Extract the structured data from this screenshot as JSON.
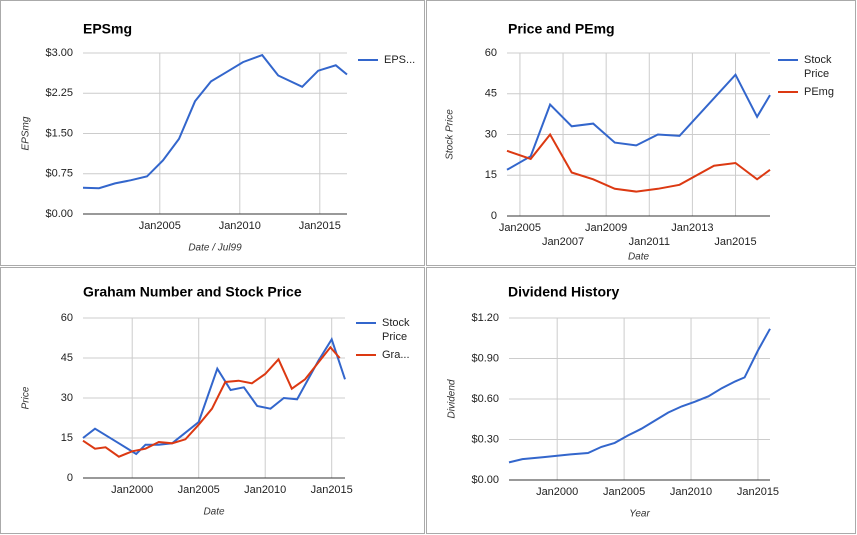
{
  "chart_data": [
    {
      "type": "line",
      "title": "EPSmg",
      "x_label": "Date / Jul99",
      "y_label": "EPSmg",
      "grid": true,
      "xlim": [
        2000.2,
        2016.7
      ],
      "ylim": [
        0,
        3
      ],
      "xticks": [
        {
          "value": 2005,
          "label": "Jan2005"
        },
        {
          "value": 2010,
          "label": "Jan2010"
        },
        {
          "value": 2015,
          "label": "Jan2015"
        }
      ],
      "yticks": [
        {
          "value": 0,
          "label": "$0.00"
        },
        {
          "value": 0.75,
          "label": "$0.75"
        },
        {
          "value": 1.5,
          "label": "$1.50"
        },
        {
          "value": 2.25,
          "label": "$2.25"
        },
        {
          "value": 3,
          "label": "$3.00"
        }
      ],
      "series": [
        {
          "name": "EPS...",
          "color": "#3366cc",
          "x": [
            2000.2,
            2001.2,
            2002.2,
            2003.2,
            2004.2,
            2005.2,
            2006.2,
            2007.2,
            2008.2,
            2009.2,
            2010.2,
            2011.4,
            2012.4,
            2013.9,
            2014.9,
            2016.0,
            2016.7
          ],
          "values": [
            0.49,
            0.48,
            0.57,
            0.63,
            0.7,
            1.0,
            1.4,
            2.1,
            2.47,
            2.65,
            2.83,
            2.96,
            2.58,
            2.37,
            2.67,
            2.77,
            2.6
          ]
        }
      ]
    },
    {
      "type": "line",
      "title": "Price and PEmg",
      "x_label": "Date",
      "y_label": "Stock Price",
      "grid": true,
      "xlim": [
        2004.4,
        2016.6
      ],
      "ylim": [
        0,
        60
      ],
      "xticks": [
        {
          "value": 2005,
          "label": "Jan2005"
        },
        {
          "value": 2007,
          "label": "Jan2007"
        },
        {
          "value": 2009,
          "label": "Jan2009"
        },
        {
          "value": 2011,
          "label": "Jan2011"
        },
        {
          "value": 2013,
          "label": "Jan2013"
        },
        {
          "value": 2015,
          "label": "Jan2015"
        }
      ],
      "yticks": [
        0,
        15,
        30,
        45,
        60
      ],
      "series": [
        {
          "name": "Stock Price",
          "color": "#3366cc",
          "x": [
            2004.4,
            2005.5,
            2006.4,
            2007.4,
            2008.4,
            2009.4,
            2010.4,
            2011.4,
            2012.4,
            2015.0,
            2016.0,
            2016.6
          ],
          "values": [
            17,
            22,
            41,
            33,
            34,
            27,
            26,
            30,
            29.5,
            52,
            36.5,
            44.5
          ]
        },
        {
          "name": "PEmg",
          "color": "#dc3912",
          "x": [
            2004.4,
            2005.5,
            2006.4,
            2007.4,
            2008.4,
            2009.4,
            2010.4,
            2011.4,
            2012.4,
            2014.0,
            2015.0,
            2016.0,
            2016.6
          ],
          "values": [
            24,
            21,
            30,
            16,
            13.5,
            10,
            9,
            10,
            11.5,
            18.5,
            19.5,
            13.5,
            17
          ]
        }
      ]
    },
    {
      "type": "line",
      "title": "Graham Number and Stock Price",
      "x_label": "Date",
      "y_label": "Price",
      "grid": true,
      "xlim": [
        1996.3,
        2016.0
      ],
      "ylim": [
        0,
        60
      ],
      "xticks": [
        {
          "value": 2000,
          "label": "Jan2000"
        },
        {
          "value": 2005,
          "label": "Jan2005"
        },
        {
          "value": 2010,
          "label": "Jan2010"
        },
        {
          "value": 2015,
          "label": "Jan2015"
        }
      ],
      "yticks": [
        0,
        15,
        30,
        45,
        60
      ],
      "series": [
        {
          "name": "Stock Price",
          "color": "#3366cc",
          "x": [
            1996.3,
            1997.2,
            1999.0,
            2000.3,
            2001.0,
            2002.0,
            2003.0,
            2004.0,
            2005.0,
            2006.4,
            2007.4,
            2008.4,
            2009.4,
            2010.4,
            2011.4,
            2012.4,
            2014.0,
            2015.0,
            2016.0
          ],
          "values": [
            15,
            18.5,
            13,
            9,
            12.5,
            12.5,
            13,
            17,
            21,
            41,
            33,
            34,
            27,
            26,
            30,
            29.5,
            44,
            52,
            37
          ]
        },
        {
          "name": "Gra...",
          "color": "#dc3912",
          "x": [
            1996.3,
            1997.2,
            1998.0,
            1999.0,
            2000.0,
            2001.0,
            2002.0,
            2003.0,
            2004.0,
            2005.0,
            2006.0,
            2007.0,
            2008.0,
            2009.0,
            2010.0,
            2011.0,
            2012.0,
            2013.0,
            2014.9,
            2015.6
          ],
          "values": [
            14,
            11,
            11.5,
            8,
            10,
            11,
            13.5,
            13,
            14.5,
            20,
            26,
            36,
            36.5,
            35.5,
            39,
            44.5,
            33.5,
            37,
            49,
            45
          ]
        }
      ]
    },
    {
      "type": "line",
      "title": "Dividend History",
      "x_label": "Year",
      "y_label": "Dividend",
      "grid": true,
      "xlim": [
        1996.4,
        2015.9
      ],
      "ylim": [
        0,
        1.2
      ],
      "xticks": [
        {
          "value": 2000,
          "label": "Jan2000"
        },
        {
          "value": 2005,
          "label": "Jan2005"
        },
        {
          "value": 2010,
          "label": "Jan2010"
        },
        {
          "value": 2015,
          "label": "Jan2015"
        }
      ],
      "yticks": [
        {
          "value": 0,
          "label": "$0.00"
        },
        {
          "value": 0.3,
          "label": "$0.30"
        },
        {
          "value": 0.6,
          "label": "$0.60"
        },
        {
          "value": 0.9,
          "label": "$0.90"
        },
        {
          "value": 1.2,
          "label": "$1.20"
        }
      ],
      "series": [
        {
          "color": "#3366cc",
          "x": [
            1996.4,
            1997.4,
            1999.0,
            2000.0,
            2001.0,
            2002.3,
            2003.3,
            2004.3,
            2005.3,
            2006.3,
            2007.3,
            2008.3,
            2009.3,
            2010.3,
            2011.3,
            2012.3,
            2013.3,
            2014.0,
            2015.0,
            2015.9
          ],
          "values": [
            0.13,
            0.155,
            0.17,
            0.18,
            0.19,
            0.2,
            0.245,
            0.275,
            0.33,
            0.38,
            0.44,
            0.5,
            0.545,
            0.58,
            0.62,
            0.68,
            0.73,
            0.76,
            0.96,
            1.12
          ]
        }
      ]
    }
  ]
}
